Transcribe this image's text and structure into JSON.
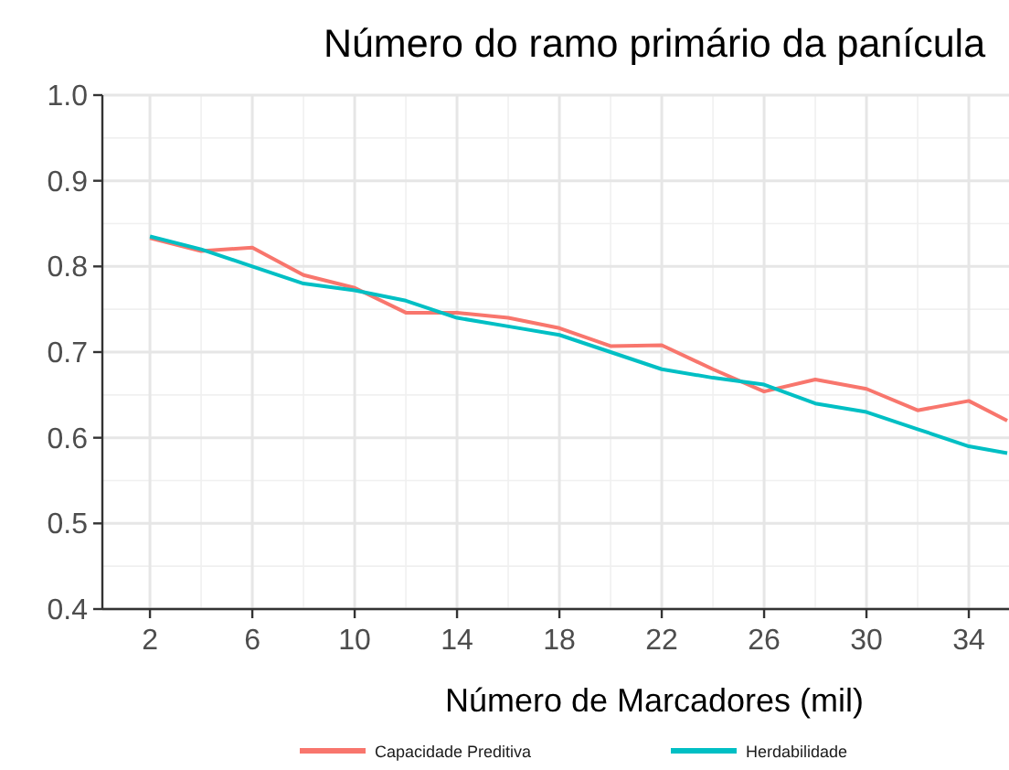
{
  "chart_data": {
    "type": "line",
    "title": "Número do ramo primário da panícula",
    "xlabel": "Número de Marcadores (mil)",
    "xlim": [
      0.14,
      35.57
    ],
    "xticks": [
      2,
      6,
      10,
      14,
      18,
      22,
      26,
      30,
      34
    ],
    "ylim": [
      0.4,
      1.0
    ],
    "yticks": [
      {
        "value": 0.4,
        "label": "0.4"
      },
      {
        "value": 0.5,
        "label": "0.5"
      },
      {
        "value": 0.6,
        "label": "0.6"
      },
      {
        "value": 0.7,
        "label": "0.7"
      },
      {
        "value": 0.8,
        "label": "0.8"
      },
      {
        "value": 0.9,
        "label": "0.9"
      },
      {
        "value": 1.0,
        "label": "1.0"
      }
    ],
    "grid": true,
    "legend": "bottom",
    "marker": "none",
    "line_style": "solid",
    "series": [
      {
        "name": "Capacidade Preditiva",
        "color": "#f8766d",
        "x": [
          2,
          4,
          6,
          8,
          10,
          12,
          14,
          16,
          18,
          20,
          22,
          24,
          26,
          28,
          30,
          32,
          34,
          35.5
        ],
        "values": [
          0.833,
          0.818,
          0.822,
          0.79,
          0.775,
          0.746,
          0.746,
          0.74,
          0.728,
          0.707,
          0.708,
          0.68,
          0.654,
          0.668,
          0.657,
          0.632,
          0.643,
          0.62
        ]
      },
      {
        "name": "Herdabilidade",
        "color": "#00bfc4",
        "x": [
          2,
          4,
          6,
          8,
          10,
          12,
          14,
          16,
          18,
          20,
          22,
          24,
          26,
          28,
          30,
          32,
          34,
          35.5
        ],
        "values": [
          0.835,
          0.82,
          0.8,
          0.78,
          0.772,
          0.76,
          0.74,
          0.73,
          0.72,
          0.7,
          0.68,
          0.67,
          0.662,
          0.64,
          0.63,
          0.61,
          0.59,
          0.582
        ]
      }
    ]
  }
}
